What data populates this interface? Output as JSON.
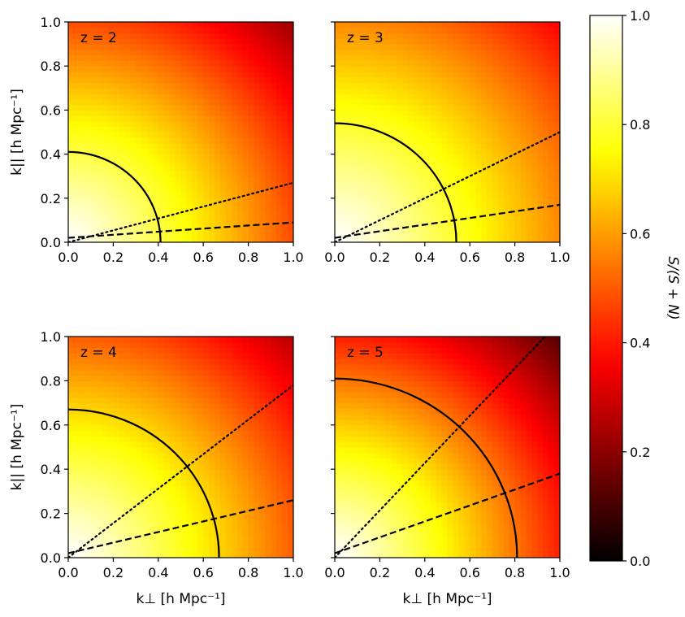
{
  "chart_data": {
    "type": "heatmap",
    "x_axis_label": "k⊥ [h Mpc⁻¹]",
    "y_axis_label": "k|| [h Mpc⁻¹]",
    "xlim": [
      0.0,
      1.0
    ],
    "ylim": [
      0.0,
      1.0
    ],
    "tick_values": [
      0.0,
      0.2,
      0.4,
      0.6,
      0.8,
      1.0
    ],
    "tick_labels": [
      "0.0",
      "0.2",
      "0.4",
      "0.6",
      "0.8",
      "1.0"
    ],
    "colormap": "hot",
    "colorbar": {
      "label": "S/(S + N)",
      "range": [
        0.0,
        1.0
      ],
      "tick_values": [
        0.0,
        0.2,
        0.4,
        0.6,
        0.8,
        1.0
      ],
      "tick_labels": [
        "0.0",
        "0.2",
        "0.4",
        "0.6",
        "0.8",
        "1.0"
      ]
    },
    "panels": [
      {
        "label": "z = 2",
        "circle_radius": 0.41,
        "dotted_line": {
          "x": [
            0.0,
            1.0
          ],
          "y": [
            0.0,
            0.27
          ]
        },
        "dashed_line": {
          "x": [
            0.0,
            1.0
          ],
          "y": [
            0.02,
            0.09
          ]
        },
        "snr_at_origin": 1.0,
        "snr_at_k_1": 0.22
      },
      {
        "label": "z = 3",
        "circle_radius": 0.54,
        "dotted_line": {
          "x": [
            0.0,
            1.0
          ],
          "y": [
            0.0,
            0.5
          ]
        },
        "dashed_line": {
          "x": [
            0.0,
            1.0
          ],
          "y": [
            0.02,
            0.17
          ]
        },
        "snr_at_origin": 1.0,
        "snr_at_k_1": 0.36
      },
      {
        "label": "z = 4",
        "circle_radius": 0.67,
        "dotted_line": {
          "x": [
            0.0,
            1.0
          ],
          "y": [
            0.0,
            0.78
          ]
        },
        "dashed_line": {
          "x": [
            0.0,
            1.0
          ],
          "y": [
            0.02,
            0.26
          ]
        },
        "snr_at_origin": 1.0,
        "snr_at_k_1": 0.26
      },
      {
        "label": "z = 5",
        "circle_radius": 0.81,
        "dotted_line": {
          "x": [
            0.0,
            1.0
          ],
          "y": [
            0.0,
            1.07
          ]
        },
        "dashed_line": {
          "x": [
            0.0,
            1.0
          ],
          "y": [
            0.02,
            0.38
          ]
        },
        "snr_at_origin": 1.0,
        "snr_at_k_1": 0.12
      }
    ]
  }
}
